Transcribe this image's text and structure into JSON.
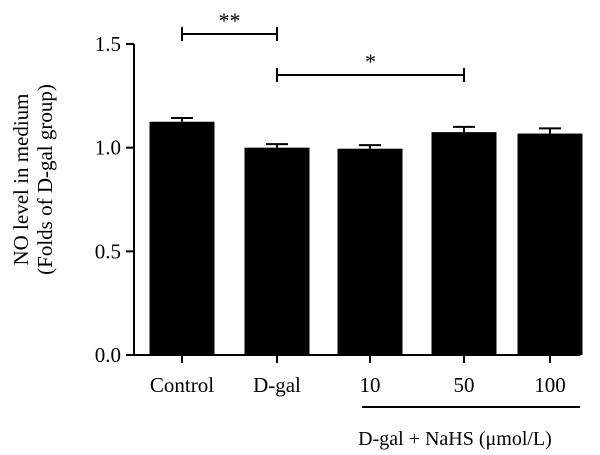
{
  "chart_data": {
    "type": "bar",
    "categories": [
      "Control",
      "D-gal",
      "10",
      "50",
      "100"
    ],
    "values": [
      1.125,
      1.0,
      0.995,
      1.075,
      1.068
    ],
    "errors": [
      0.018,
      0.017,
      0.017,
      0.025,
      0.025
    ],
    "ylabel_lines": [
      "NO level in medium",
      "(Folds of D-gal group)"
    ],
    "ylim": [
      0,
      1.5
    ],
    "yticks": [
      "0.0",
      "0.5",
      "1.0",
      "1.5"
    ],
    "bar_color": "#000000",
    "grid": false,
    "group_label": "D-gal + NaHS (μmol/L)",
    "group_categories": [
      "10",
      "50",
      "100"
    ],
    "significance": [
      {
        "from": "Control",
        "to": "D-gal",
        "label": "**"
      },
      {
        "from": "D-gal",
        "to": "50",
        "label": "*"
      }
    ]
  }
}
